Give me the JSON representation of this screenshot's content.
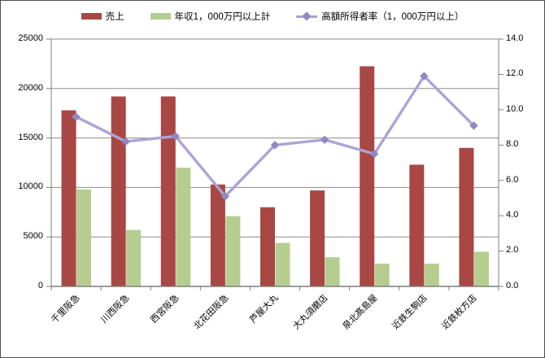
{
  "chart_data": {
    "type": "combo",
    "categories": [
      "千里阪急",
      "川西阪急",
      "西宮阪急",
      "北花田阪急",
      "芦屋大丸",
      "大丸須磨店",
      "泉北髙島屋",
      "近鉄生駒店",
      "近鉄枚方店"
    ],
    "series": [
      {
        "name": "売上",
        "type": "bar",
        "axis": "left",
        "color": "#A84743",
        "values": [
          17800,
          19200,
          19200,
          10300,
          8000,
          9700,
          22250,
          12300,
          14000
        ]
      },
      {
        "name": "年収1，000万円以上計",
        "type": "bar",
        "axis": "left",
        "color": "#B5CE90",
        "values": [
          9800,
          5700,
          12000,
          7100,
          4400,
          2950,
          2300,
          2300,
          3500
        ]
      },
      {
        "name": "高額所得者率（1，000万円以上）",
        "type": "line",
        "axis": "right",
        "color": "#ACA4D6",
        "marker_color": "#9188C2",
        "values": [
          9.6,
          8.2,
          8.5,
          5.1,
          8.0,
          8.3,
          7.5,
          11.9,
          9.1
        ]
      }
    ],
    "title": "",
    "xlabel": "",
    "ylabel_left": "",
    "ylabel_right": "",
    "left_axis": {
      "min": 0,
      "max": 25000,
      "step": 5000,
      "ticks": [
        "0",
        "5000",
        "10000",
        "15000",
        "20000",
        "25000"
      ]
    },
    "right_axis": {
      "min": 0,
      "max": 14,
      "step": 2,
      "ticks": [
        "0.0",
        "2.0",
        "4.0",
        "6.0",
        "8.0",
        "10.0",
        "12.0",
        "14.0"
      ]
    },
    "grid": "horizontal",
    "legend_position": "top",
    "colors": {
      "grid": "#8C8C8C",
      "axis": "#7F7F7F",
      "background": "#FFFFFF",
      "border": "#4D4D4D"
    }
  }
}
